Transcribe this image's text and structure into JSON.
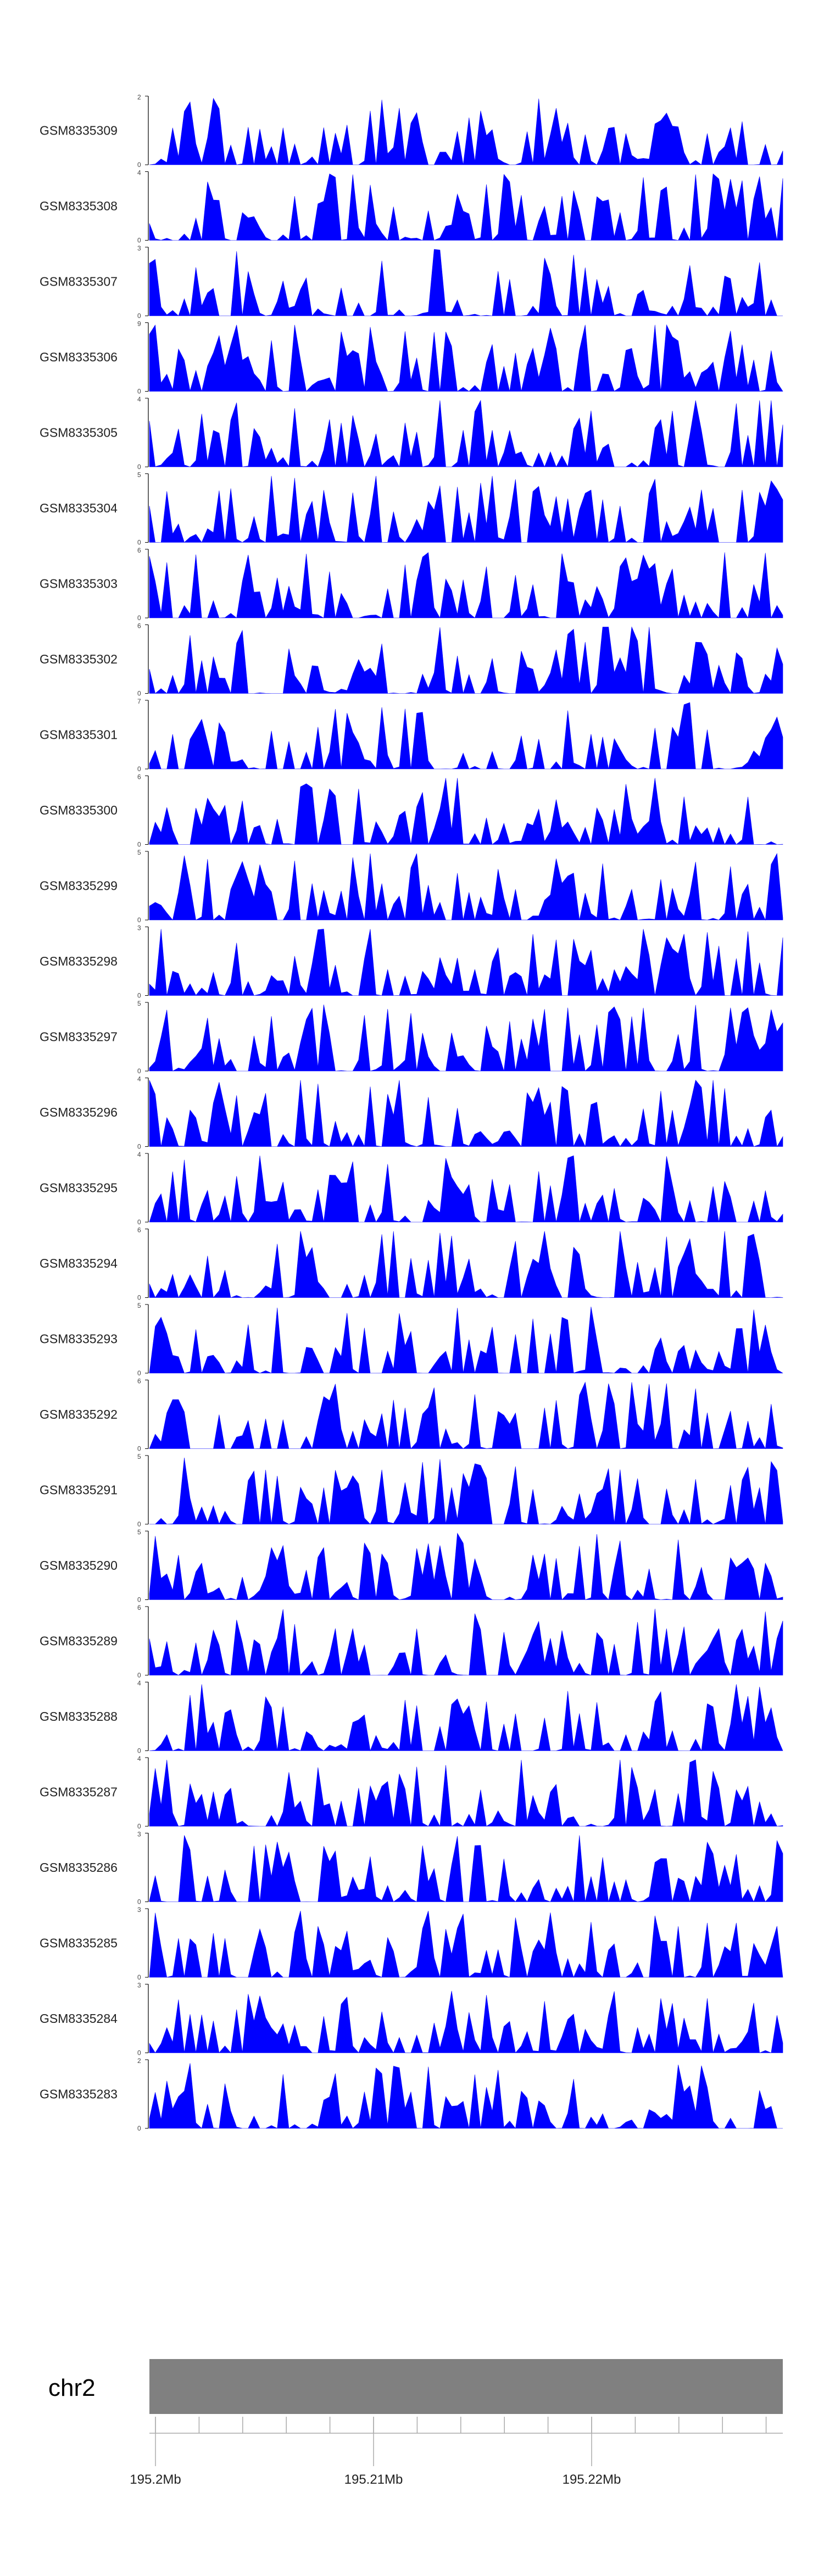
{
  "chart_data": {
    "type": "area",
    "colors": {
      "signal": "#0000ff",
      "ideogram": "#808080",
      "axis": "#000000"
    },
    "grid": false,
    "legend": "none",
    "x_range_mb": [
      195.2,
      195.229
    ],
    "n_bins": 110,
    "series": [
      {
        "name": "GSM8335309",
        "ymax": 2,
        "seed": 9
      },
      {
        "name": "GSM8335308",
        "ymax": 4,
        "seed": 8
      },
      {
        "name": "GSM8335307",
        "ymax": 3,
        "seed": 7
      },
      {
        "name": "GSM8335306",
        "ymax": 9,
        "seed": 6
      },
      {
        "name": "GSM8335305",
        "ymax": 4,
        "seed": 5
      },
      {
        "name": "GSM8335304",
        "ymax": 5,
        "seed": 4
      },
      {
        "name": "GSM8335303",
        "ymax": 6,
        "seed": 3
      },
      {
        "name": "GSM8335302",
        "ymax": 6,
        "seed": 2
      },
      {
        "name": "GSM8335301",
        "ymax": 7,
        "seed": 1
      },
      {
        "name": "GSM8335300",
        "ymax": 6,
        "seed": 100
      },
      {
        "name": "GSM8335299",
        "ymax": 5,
        "seed": 99
      },
      {
        "name": "GSM8335298",
        "ymax": 3,
        "seed": 98
      },
      {
        "name": "GSM8335297",
        "ymax": 5,
        "seed": 97
      },
      {
        "name": "GSM8335296",
        "ymax": 4,
        "seed": 96
      },
      {
        "name": "GSM8335295",
        "ymax": 4,
        "seed": 95
      },
      {
        "name": "GSM8335294",
        "ymax": 6,
        "seed": 94
      },
      {
        "name": "GSM8335293",
        "ymax": 5,
        "seed": 93
      },
      {
        "name": "GSM8335292",
        "ymax": 6,
        "seed": 92
      },
      {
        "name": "GSM8335291",
        "ymax": 5,
        "seed": 91
      },
      {
        "name": "GSM8335290",
        "ymax": 5,
        "seed": 90
      },
      {
        "name": "GSM8335289",
        "ymax": 6,
        "seed": 89
      },
      {
        "name": "GSM8335288",
        "ymax": 4,
        "seed": 88
      },
      {
        "name": "GSM8335287",
        "ymax": 4,
        "seed": 87
      },
      {
        "name": "GSM8335286",
        "ymax": 3,
        "seed": 86
      },
      {
        "name": "GSM8335285",
        "ymax": 3,
        "seed": 85
      },
      {
        "name": "GSM8335284",
        "ymax": 3,
        "seed": 84
      },
      {
        "name": "GSM8335283",
        "ymax": 2,
        "seed": 83
      }
    ],
    "ymin_label": "0",
    "chromosome": {
      "label": "chr2",
      "ticks": [
        {
          "value": 195.2,
          "label": "195.2Mb"
        },
        {
          "value": 195.21,
          "label": "195.21Mb"
        },
        {
          "value": 195.22,
          "label": "195.22Mb"
        }
      ],
      "minor_tick_step_mb": 0.002
    }
  }
}
